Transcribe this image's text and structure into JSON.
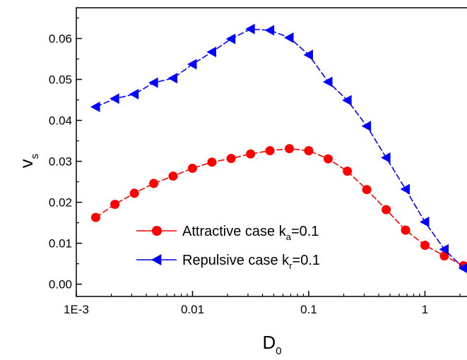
{
  "chart_data": {
    "type": "line",
    "xscale": "log",
    "xlim": [
      0.001,
      2.3
    ],
    "ylim": [
      -0.003,
      0.0675
    ],
    "x_ticks": [
      {
        "value": 0.001,
        "label": "1E-3"
      },
      {
        "value": 0.01,
        "label": "0.01"
      },
      {
        "value": 0.1,
        "label": "0.1"
      },
      {
        "value": 1,
        "label": "1"
      }
    ],
    "y_ticks": [
      {
        "value": 0.0,
        "label": "0.00"
      },
      {
        "value": 0.01,
        "label": "0.01"
      },
      {
        "value": 0.02,
        "label": "0.02"
      },
      {
        "value": 0.03,
        "label": "0.03"
      },
      {
        "value": 0.04,
        "label": "0.04"
      },
      {
        "value": 0.05,
        "label": "0.05"
      },
      {
        "value": 0.06,
        "label": "0.06"
      }
    ],
    "xlabel": {
      "main": "D",
      "sub": "0"
    },
    "ylabel": {
      "main": "v",
      "sub": "s"
    },
    "legend_position": "lower-center",
    "series": [
      {
        "name_main": "Attractive case k",
        "name_sub": "a",
        "name_tail": "=0.1",
        "color": "#ff0000",
        "marker": "circle",
        "line": "dashed",
        "x": [
          0.00147,
          0.00215,
          0.00316,
          0.00464,
          0.00681,
          0.01,
          0.0147,
          0.0215,
          0.0316,
          0.0464,
          0.0681,
          0.1,
          0.147,
          0.215,
          0.316,
          0.464,
          0.681,
          1.0,
          1.47,
          2.15
        ],
        "y": [
          0.0163,
          0.0195,
          0.0222,
          0.0246,
          0.0264,
          0.0283,
          0.0298,
          0.0307,
          0.0318,
          0.0326,
          0.0331,
          0.0326,
          0.0306,
          0.0276,
          0.0231,
          0.0182,
          0.0132,
          0.0095,
          0.0069,
          0.0045
        ]
      },
      {
        "name_main": "Repulsive case k",
        "name_sub": "r",
        "name_tail": "=0.1",
        "color": "#0000ff",
        "marker": "triangle-left",
        "line": "dashed",
        "x": [
          0.00147,
          0.00215,
          0.00316,
          0.00464,
          0.00681,
          0.01,
          0.0147,
          0.0215,
          0.0316,
          0.0464,
          0.0681,
          0.1,
          0.147,
          0.215,
          0.316,
          0.464,
          0.681,
          1.0,
          1.47,
          2.15
        ],
        "y": [
          0.0433,
          0.0453,
          0.0464,
          0.0492,
          0.0503,
          0.0537,
          0.0567,
          0.0599,
          0.0623,
          0.062,
          0.0602,
          0.056,
          0.0494,
          0.0449,
          0.0386,
          0.0309,
          0.0232,
          0.0152,
          0.0085,
          0.0039
        ]
      }
    ]
  }
}
